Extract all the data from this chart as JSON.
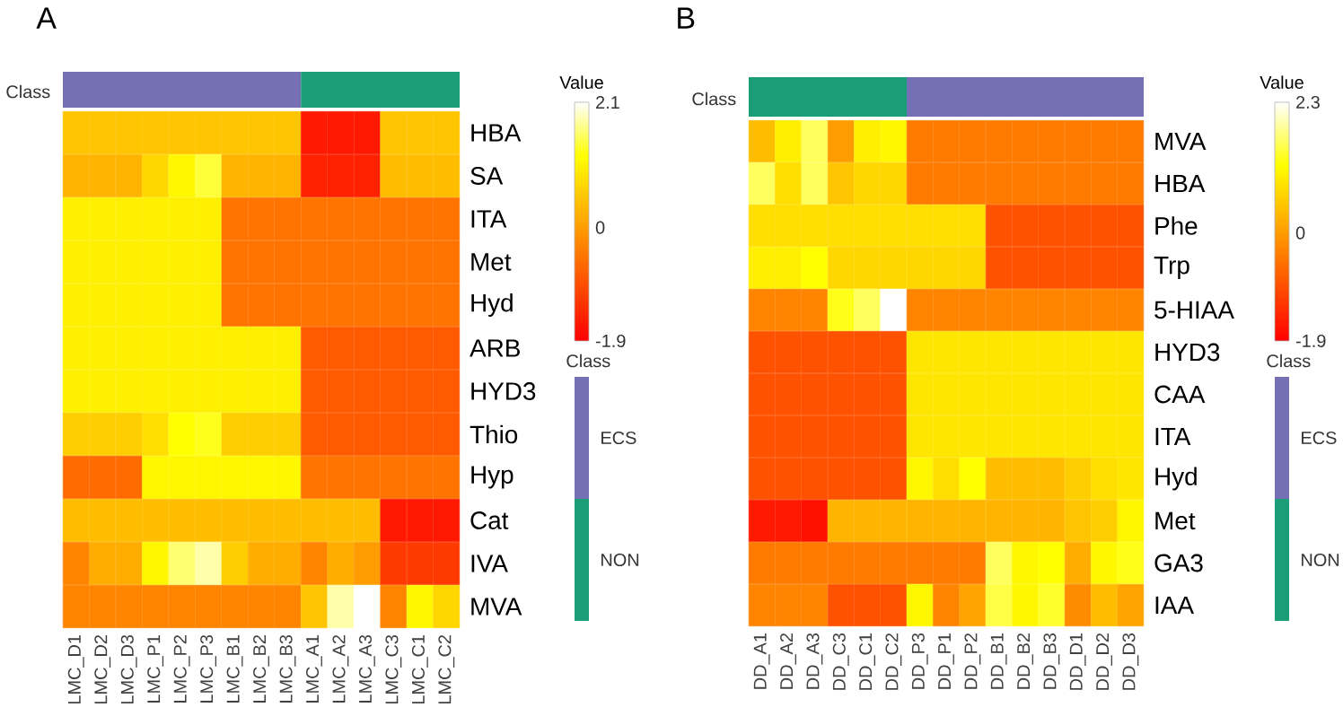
{
  "chart_data": [
    {
      "type": "heatmap",
      "title": "A",
      "clabel": "Value",
      "categories": [
        "LMC_D1",
        "LMC_D2",
        "LMC_D3",
        "LMC_P1",
        "LMC_P2",
        "LMC_P3",
        "LMC_B1",
        "LMC_B2",
        "LMC_B3",
        "LMC_A1",
        "LMC_A2",
        "LMC_A3",
        "LMC_C3",
        "LMC_C1",
        "LMC_C2"
      ],
      "y_categories": [
        "HBA",
        "SA",
        "ITA",
        "Met",
        "Hyd",
        "ARB",
        "HYD3",
        "Thio",
        "Hyp",
        "Cat",
        "IVA",
        "MVA"
      ],
      "cells": [
        [
          0.5,
          0.5,
          0.5,
          0.5,
          0.5,
          0.5,
          0.5,
          0.5,
          0.5,
          -1.6,
          -1.6,
          -1.6,
          0.5,
          0.5,
          0.5
        ],
        [
          0.3,
          0.3,
          0.3,
          0.7,
          1.1,
          1.4,
          0.3,
          0.3,
          0.3,
          -1.5,
          -1.5,
          -1.5,
          0.4,
          0.4,
          0.4
        ],
        [
          1.0,
          1.0,
          1.0,
          1.0,
          1.0,
          1.0,
          -0.5,
          -0.5,
          -0.5,
          -0.5,
          -0.5,
          -0.5,
          -0.5,
          -0.5,
          -0.5
        ],
        [
          1.0,
          1.0,
          1.0,
          1.0,
          1.0,
          1.0,
          -0.5,
          -0.5,
          -0.5,
          -0.5,
          -0.5,
          -0.5,
          -0.5,
          -0.5,
          -0.5
        ],
        [
          1.0,
          1.0,
          1.0,
          1.0,
          1.0,
          1.0,
          -0.5,
          -0.5,
          -0.5,
          -0.5,
          -0.5,
          -0.5,
          -0.5,
          -0.5,
          -0.5
        ],
        [
          1.0,
          1.0,
          1.0,
          1.0,
          1.0,
          1.0,
          1.0,
          1.0,
          1.0,
          -0.8,
          -0.8,
          -0.8,
          -0.8,
          -0.8,
          -0.8
        ],
        [
          1.0,
          1.0,
          1.0,
          1.0,
          1.0,
          1.0,
          1.0,
          1.0,
          1.0,
          -0.8,
          -0.8,
          -0.8,
          -0.8,
          -0.8,
          -0.8
        ],
        [
          0.6,
          0.6,
          0.6,
          0.8,
          1.2,
          1.3,
          0.6,
          0.6,
          0.6,
          -0.8,
          -0.8,
          -0.8,
          -0.8,
          -0.8,
          -0.8
        ],
        [
          -0.6,
          -0.6,
          -0.6,
          1.1,
          1.1,
          1.1,
          1.1,
          1.1,
          1.1,
          -0.5,
          -0.5,
          -0.5,
          -0.5,
          -0.5,
          -0.5
        ],
        [
          0.4,
          0.4,
          0.4,
          0.4,
          0.4,
          0.4,
          0.4,
          0.4,
          0.4,
          0.4,
          0.4,
          0.4,
          -1.6,
          -1.6,
          -1.6
        ],
        [
          -0.3,
          0.2,
          0.2,
          1.1,
          1.6,
          1.8,
          0.6,
          0.2,
          0.2,
          -0.3,
          0.2,
          0.0,
          -1.2,
          -1.2,
          -1.2
        ],
        [
          -0.3,
          -0.3,
          -0.3,
          -0.3,
          -0.3,
          -0.3,
          -0.3,
          -0.3,
          -0.3,
          0.5,
          1.8,
          2.1,
          -0.3,
          1.1,
          0.7
        ]
      ],
      "clim": [
        -1.9,
        2.1
      ],
      "cticks": [
        2.1,
        0,
        -1.9
      ],
      "annotations": [
        "Class",
        "Class",
        "ECS",
        "NON"
      ]
    },
    {
      "type": "heatmap",
      "title": "B",
      "clabel": "Value",
      "categories": [
        "DD_A1",
        "DD_A2",
        "DD_A3",
        "DD_C3",
        "DD_C1",
        "DD_C2",
        "DD_P3",
        "DD_P1",
        "DD_P2",
        "DD_B1",
        "DD_B2",
        "DD_B3",
        "DD_D1",
        "DD_D2",
        "DD_D3"
      ],
      "y_categories": [
        "MVA",
        "HBA",
        "Phe",
        "Trp",
        "5-HIAA",
        "HYD3",
        "CAA",
        "ITA",
        "Hyd",
        "Met",
        "GA3",
        "IAA"
      ],
      "cells": [
        [
          0.4,
          1.0,
          1.6,
          0.0,
          1.0,
          1.1,
          -0.4,
          -0.4,
          -0.4,
          -0.4,
          -0.4,
          -0.4,
          -0.4,
          -0.4,
          -0.4
        ],
        [
          1.6,
          0.8,
          1.6,
          0.5,
          0.7,
          0.7,
          -0.4,
          -0.4,
          -0.4,
          -0.4,
          -0.4,
          -0.4,
          -0.4,
          -0.4,
          -0.4
        ],
        [
          0.8,
          0.8,
          0.8,
          0.8,
          0.8,
          0.8,
          0.8,
          0.8,
          0.8,
          -0.9,
          -0.9,
          -0.9,
          -0.9,
          -0.9,
          -0.9
        ],
        [
          1.0,
          1.0,
          1.2,
          0.7,
          0.7,
          0.7,
          0.7,
          0.7,
          0.7,
          -0.9,
          -0.9,
          -0.9,
          -0.9,
          -0.9,
          -0.9
        ],
        [
          -0.3,
          -0.3,
          -0.3,
          1.3,
          1.6,
          2.3,
          -0.3,
          -0.3,
          -0.3,
          -0.3,
          -0.3,
          -0.3,
          -0.3,
          -0.3,
          -0.3
        ],
        [
          -0.9,
          -0.9,
          -0.9,
          -0.9,
          -0.9,
          -0.9,
          0.9,
          0.9,
          0.9,
          0.9,
          0.9,
          0.9,
          0.9,
          0.9,
          0.9
        ],
        [
          -0.9,
          -0.9,
          -0.9,
          -0.9,
          -0.9,
          -0.9,
          0.9,
          0.9,
          0.9,
          0.9,
          0.9,
          0.9,
          0.9,
          0.9,
          0.9
        ],
        [
          -0.9,
          -0.9,
          -0.9,
          -0.9,
          -0.9,
          -0.9,
          0.9,
          0.9,
          0.9,
          0.9,
          0.9,
          0.9,
          0.9,
          0.9,
          0.9
        ],
        [
          -0.9,
          -0.9,
          -0.9,
          -0.9,
          -0.9,
          -0.9,
          1.1,
          0.8,
          1.2,
          0.4,
          0.4,
          0.4,
          0.6,
          0.8,
          0.9
        ],
        [
          -1.6,
          -1.6,
          -1.7,
          0.3,
          0.3,
          0.3,
          0.3,
          0.3,
          0.3,
          0.3,
          0.3,
          0.3,
          0.5,
          0.6,
          1.1
        ],
        [
          -0.4,
          -0.4,
          -0.4,
          -0.4,
          -0.4,
          -0.4,
          -0.4,
          -0.4,
          -0.4,
          1.6,
          1.1,
          1.2,
          0.2,
          1.1,
          1.3
        ],
        [
          -0.3,
          -0.3,
          -0.3,
          -0.9,
          -0.9,
          -0.9,
          1.1,
          -0.3,
          0.1,
          1.5,
          1.1,
          1.4,
          -0.2,
          0.4,
          0.1
        ]
      ],
      "clim": [
        -1.9,
        2.3
      ],
      "cticks": [
        2.3,
        0,
        -1.9
      ],
      "annotations": [
        "Class",
        "Class",
        "ECS",
        "NON"
      ]
    }
  ]
}
